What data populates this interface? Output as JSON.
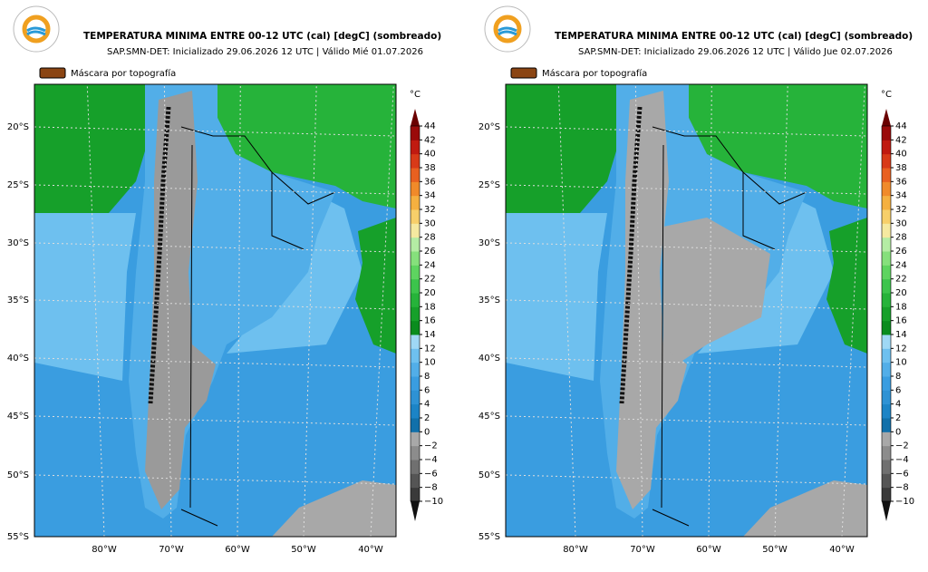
{
  "panels": [
    {
      "title": "TEMPERATURA MINIMA ENTRE 00-12 UTC (cal) [degC] (sombreado)",
      "subtitle": "SAP.SMN-DET: Inicializado 29.06.2026 12 UTC | Válido Mié 01.07.2026",
      "legend": "Máscara por topografía",
      "lat_labels": [
        "20°S",
        "25°S",
        "30°S",
        "35°S",
        "40°S",
        "45°S",
        "50°S",
        "55°S"
      ],
      "lon_labels": [
        "80°W",
        "70°W",
        "60°W",
        "50°W",
        "40°W"
      ],
      "unit": "°C",
      "colorbar_ticks": [
        "−10",
        "−8",
        "−6",
        "−4",
        "−2",
        "0",
        "2",
        "4",
        "6",
        "8",
        "10",
        "12",
        "14",
        "16",
        "18",
        "20",
        "22",
        "24",
        "26",
        "28",
        "30",
        "32",
        "34",
        "36",
        "38",
        "40",
        "42",
        "44"
      ]
    },
    {
      "title": "TEMPERATURA MINIMA ENTRE 00-12 UTC (cal) [degC] (sombreado)",
      "subtitle": "SAP.SMN-DET: Inicializado 29.06.2026 12 UTC | Válido Jue 02.07.2026",
      "legend": "Máscara por topografía",
      "lat_labels": [
        "20°S",
        "25°S",
        "30°S",
        "35°S",
        "40°S",
        "45°S",
        "50°S",
        "55°S"
      ],
      "lon_labels": [
        "80°W",
        "70°W",
        "60°W",
        "50°W",
        "40°W"
      ],
      "unit": "°C",
      "colorbar_ticks": [
        "−10",
        "−8",
        "−6",
        "−4",
        "−2",
        "0",
        "2",
        "4",
        "6",
        "8",
        "10",
        "12",
        "14",
        "16",
        "18",
        "20",
        "22",
        "24",
        "26",
        "28",
        "30",
        "32",
        "34",
        "36",
        "38",
        "40",
        "42",
        "44"
      ]
    }
  ],
  "colorbar_colors": [
    "#3a3a3a",
    "#555555",
    "#707070",
    "#8c8c8c",
    "#a8a8a8",
    "#1170aa",
    "#1c84c6",
    "#2e92d4",
    "#3a9de0",
    "#52aee8",
    "#6ec0ef",
    "#9fd8f5",
    "#0a8c1e",
    "#16a02a",
    "#26b33a",
    "#3cc44c",
    "#5ed460",
    "#86e07c",
    "#b4eca4",
    "#f5e9a0",
    "#f7cf6a",
    "#f5b040",
    "#f08a2a",
    "#e86020",
    "#d83a18",
    "#c01a10",
    "#9a0a0a"
  ],
  "under_color": "#111111",
  "over_color": "#6a0000"
}
